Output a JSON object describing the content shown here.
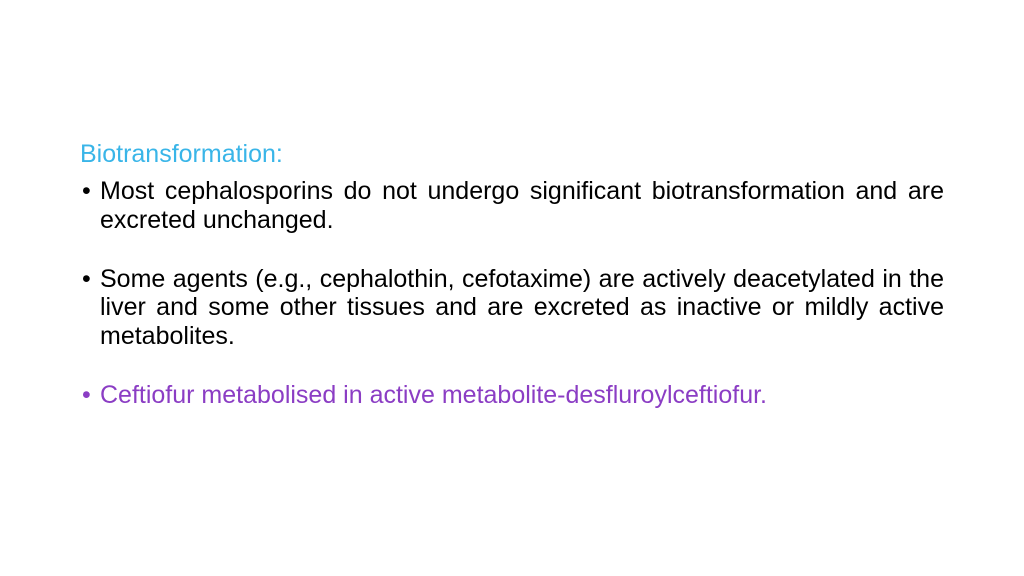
{
  "heading": {
    "text": "Biotransformation:",
    "color": "#39b5e8"
  },
  "bullets": {
    "item1": {
      "text": "Most cephalosporins do not undergo significant biotransformation and are excreted unchanged.",
      "color": "#000000"
    },
    "item2": {
      "text": "Some agents (e.g., cephalothin, cefotaxime) are actively deacetylated in the liver and some other tissues and are excreted as inactive or mildly active metabolites.",
      "color": "#000000"
    },
    "item3": {
      "text": "Ceftiofur metabolised in active metabolite-desfluroylceftiofur.",
      "color": "#8b3dc4"
    }
  },
  "styling": {
    "background_color": "#ffffff",
    "font_family": "Comic Sans MS",
    "heading_fontsize": 25,
    "body_fontsize": 25,
    "bullet_char": "•"
  }
}
